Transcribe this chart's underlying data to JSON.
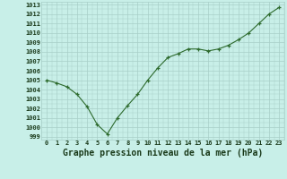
{
  "x": [
    0,
    1,
    2,
    3,
    4,
    5,
    6,
    7,
    8,
    9,
    10,
    11,
    12,
    13,
    14,
    15,
    16,
    17,
    18,
    19,
    20,
    21,
    22,
    23
  ],
  "y": [
    1005.0,
    1004.7,
    1004.3,
    1003.5,
    1002.2,
    1000.3,
    999.3,
    1001.0,
    1002.3,
    1003.5,
    1005.0,
    1006.3,
    1007.4,
    1007.8,
    1008.3,
    1008.3,
    1008.1,
    1008.3,
    1008.7,
    1009.3,
    1010.0,
    1011.0,
    1012.0,
    1012.7
  ],
  "line_color": "#2d6a2d",
  "marker": "+",
  "bg_color": "#c8efe8",
  "grid_color": "#a8cfc8",
  "xlabel": "Graphe pression niveau de la mer (hPa)",
  "xlabel_color": "#1a3a1a",
  "ylim": [
    999,
    1013
  ],
  "xlim": [
    0,
    23
  ],
  "yticks": [
    999,
    1000,
    1001,
    1002,
    1003,
    1004,
    1005,
    1006,
    1007,
    1008,
    1009,
    1010,
    1011,
    1012,
    1013
  ],
  "xticks": [
    0,
    1,
    2,
    3,
    4,
    5,
    6,
    7,
    8,
    9,
    10,
    11,
    12,
    13,
    14,
    15,
    16,
    17,
    18,
    19,
    20,
    21,
    22,
    23
  ],
  "tick_color": "#1a3a1a",
  "tick_fontsize": 5.0,
  "xlabel_fontsize": 7.0
}
